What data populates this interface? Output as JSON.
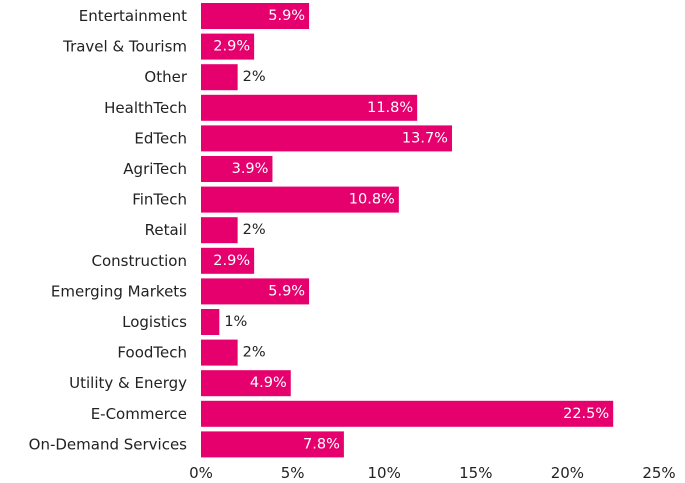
{
  "chart_data": {
    "type": "bar",
    "orientation": "horizontal",
    "categories": [
      "Entertainment",
      "Travel & Tourism",
      "Other",
      "HealthTech",
      "EdTech",
      "AgriTech",
      "FinTech",
      "Retail",
      "Construction",
      "Emerging Markets",
      "Logistics",
      "FoodTech",
      "Utility & Energy",
      "E-Commerce",
      "On-Demand Services"
    ],
    "values": [
      5.9,
      2.9,
      2,
      11.8,
      13.7,
      3.9,
      10.8,
      2,
      2.9,
      5.9,
      1,
      2,
      4.9,
      22.5,
      7.8
    ],
    "data_labels": [
      "5.9%",
      "2.9%",
      "2%",
      "11.8%",
      "13.7%",
      "3.9%",
      "10.8%",
      "2%",
      "2.9%",
      "5.9%",
      "1%",
      "2%",
      "4.9%",
      "22.5%",
      "7.8%"
    ],
    "x_ticks": [
      0,
      5,
      10,
      15,
      20,
      25
    ],
    "x_tick_labels": [
      "0%",
      "5%",
      "10%",
      "15%",
      "20%",
      "25%"
    ],
    "xlim": [
      0,
      25
    ],
    "title": "",
    "xlabel": "",
    "ylabel": "",
    "grid": false,
    "legend": "none",
    "bar_color": "#e5006e",
    "inside_label_color": "#ffffff",
    "outside_label_color": "#222222"
  }
}
